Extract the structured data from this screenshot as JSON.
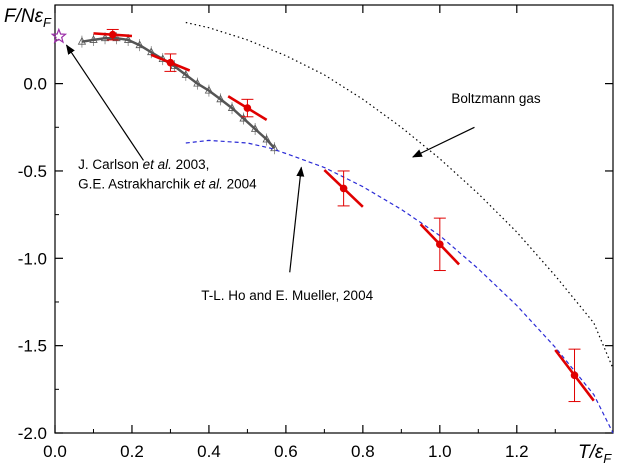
{
  "chart_data": {
    "type": "scatter",
    "title": "",
    "ylabel": {
      "main": "F/Nε",
      "sub": "F"
    },
    "xlabel": {
      "main": "T/ε",
      "sub": "F"
    },
    "xlim": [
      0.0,
      1.45
    ],
    "ylim": [
      -2.0,
      0.45
    ],
    "x_ticks": [
      0.0,
      0.2,
      0.4,
      0.6,
      0.8,
      1.0,
      1.2
    ],
    "x_tick_labels": [
      "0.0",
      "0.2",
      "0.4",
      "0.6",
      "0.8",
      "1.0",
      "1.2"
    ],
    "y_ticks": [
      0.0,
      -0.5,
      -1.0,
      -1.5,
      -2.0
    ],
    "y_tick_labels": [
      "0.0",
      "-0.5",
      "-1.0",
      "-1.5",
      "-2.0"
    ],
    "grid": false,
    "series": [
      {
        "style": "red-points-with-errorbars-and-slope-segments",
        "color": "#e00000",
        "points": [
          {
            "x": 0.15,
            "y": 0.28,
            "yerr": 0.03,
            "slope": -0.15
          },
          {
            "x": 0.3,
            "y": 0.12,
            "yerr": 0.05,
            "slope": -0.9
          },
          {
            "x": 0.5,
            "y": -0.14,
            "yerr": 0.05,
            "slope": -1.35
          },
          {
            "x": 0.75,
            "y": -0.6,
            "yerr": 0.1,
            "slope": -2.1
          },
          {
            "x": 1.0,
            "y": -0.92,
            "yerr": 0.15,
            "slope": -2.3
          },
          {
            "x": 1.35,
            "y": -1.67,
            "yerr": 0.15,
            "slope": -2.9
          }
        ]
      },
      {
        "style": "gray-triangles-band",
        "color": "#555555",
        "x": [
          0.07,
          0.1,
          0.13,
          0.16,
          0.19,
          0.22,
          0.25,
          0.28,
          0.31,
          0.34,
          0.37,
          0.4,
          0.43,
          0.46,
          0.49,
          0.52,
          0.55,
          0.57
        ],
        "y": [
          0.24,
          0.25,
          0.26,
          0.26,
          0.25,
          0.22,
          0.18,
          0.14,
          0.1,
          0.05,
          0.0,
          -0.04,
          -0.09,
          -0.14,
          -0.2,
          -0.26,
          -0.32,
          -0.37
        ]
      },
      {
        "style": "blue-dashed",
        "color": "#2b2bd6",
        "x": [
          0.34,
          0.4,
          0.5,
          0.56,
          0.6,
          0.7,
          0.8,
          0.9,
          1.0,
          1.1,
          1.2,
          1.3,
          1.4,
          1.45
        ],
        "y": [
          -0.34,
          -0.325,
          -0.34,
          -0.37,
          -0.4,
          -0.48,
          -0.59,
          -0.72,
          -0.87,
          -1.06,
          -1.27,
          -1.51,
          -1.78,
          -2.0
        ]
      },
      {
        "style": "black-dotted",
        "color": "#000000",
        "x": [
          0.34,
          0.4,
          0.5,
          0.6,
          0.7,
          0.8,
          0.9,
          1.0,
          1.1,
          1.2,
          1.3,
          1.4,
          1.45
        ],
        "y": [
          0.35,
          0.32,
          0.25,
          0.16,
          0.05,
          -0.09,
          -0.25,
          -0.43,
          -0.63,
          -0.85,
          -1.1,
          -1.37,
          -1.63
        ]
      },
      {
        "style": "star",
        "color": "#9b2ea8",
        "x": [
          0.01
        ],
        "y": [
          0.27
        ]
      }
    ],
    "annotations": [
      {
        "text": "Boltzmann gas",
        "x": 1.03,
        "y": -0.11
      },
      {
        "text": "J. Carlson ",
        "italic": "et al.",
        "tail": " 2003,",
        "x": 0.06,
        "y": -0.49
      },
      {
        "text": "G.E. Astrakharchik ",
        "italic": "et al.",
        "tail": " 2004",
        "x": 0.06,
        "y": -0.6
      },
      {
        "text": "T-L. Ho and E. Mueller, 2004",
        "x": 0.38,
        "y": -1.24
      }
    ],
    "arrows": [
      {
        "from": [
          1.09,
          -0.25
        ],
        "to": [
          0.93,
          -0.42
        ]
      },
      {
        "from": [
          0.23,
          -0.44
        ],
        "to": [
          0.03,
          0.22
        ]
      },
      {
        "from": [
          0.61,
          -1.08
        ],
        "to": [
          0.64,
          -0.48
        ]
      }
    ]
  }
}
